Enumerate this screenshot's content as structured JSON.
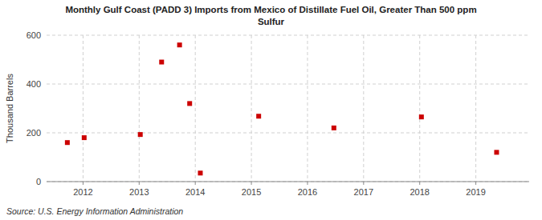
{
  "chart_data": {
    "type": "scatter",
    "title": "Monthly Gulf Coast (PADD 3) Imports from Mexico of Distillate Fuel Oil, Greater Than 500 ppm\nSulfur",
    "ylabel": "Thousand Barrels",
    "source": "Source: U.S. Energy Information Administration",
    "x": [
      2011.72,
      2012.02,
      2013.02,
      2013.4,
      2013.72,
      2013.9,
      2014.09,
      2015.13,
      2016.47,
      2018.03,
      2019.37
    ],
    "values": [
      160,
      180,
      193,
      490,
      560,
      320,
      35,
      268,
      220,
      265,
      120
    ],
    "color": "#cc0000",
    "marker": "square",
    "xlim": [
      2011.35,
      2019.95
    ],
    "xticks": [
      2012,
      2013,
      2014,
      2015,
      2016,
      2017,
      2018,
      2019
    ],
    "ylim": [
      0,
      600
    ],
    "yticks": [
      0,
      200,
      400,
      600
    ],
    "grid": true
  }
}
